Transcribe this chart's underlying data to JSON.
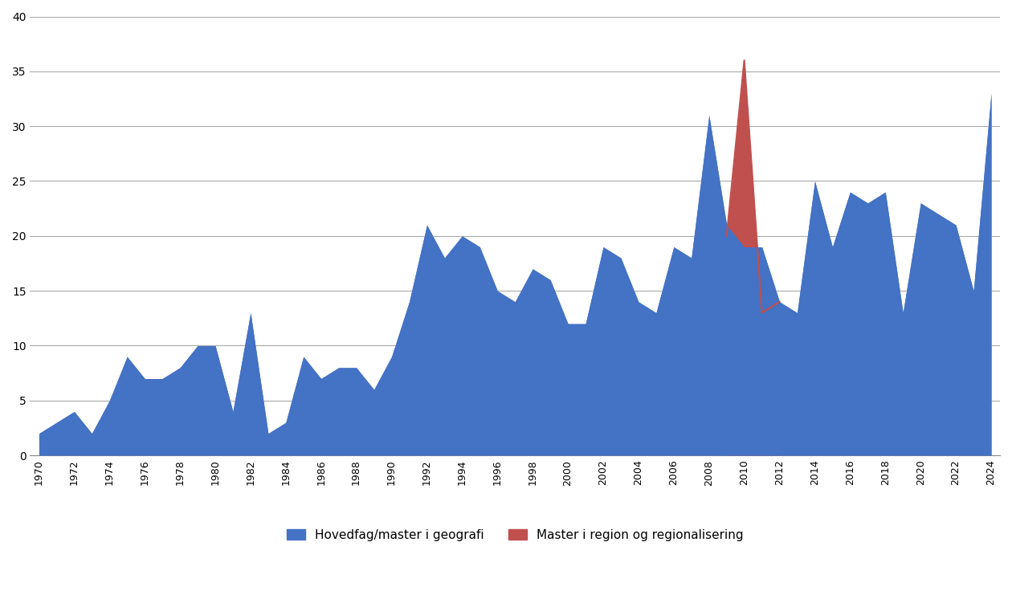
{
  "blue_series_label": "Hovedfag/master i geografi",
  "red_series_label": "Master i region og regionalisering",
  "blue_color": "#4472C4",
  "red_color": "#C0504D",
  "background_color": "#FFFFFF",
  "grid_color": "#AAAAAA",
  "years": [
    1970,
    1971,
    1972,
    1973,
    1974,
    1975,
    1976,
    1977,
    1978,
    1979,
    1980,
    1981,
    1982,
    1983,
    1984,
    1985,
    1986,
    1987,
    1988,
    1989,
    1990,
    1991,
    1992,
    1993,
    1994,
    1995,
    1996,
    1997,
    1998,
    1999,
    2000,
    2001,
    2002,
    2003,
    2004,
    2005,
    2006,
    2007,
    2008,
    2009,
    2010,
    2011,
    2012,
    2013,
    2014,
    2015,
    2016,
    2017,
    2018,
    2019,
    2020,
    2021,
    2022,
    2023,
    2024
  ],
  "blue_values": [
    2,
    3,
    4,
    2,
    5,
    9,
    7,
    7,
    8,
    10,
    10,
    4,
    13,
    2,
    3,
    9,
    7,
    8,
    8,
    6,
    9,
    14,
    21,
    18,
    20,
    19,
    15,
    14,
    17,
    16,
    12,
    12,
    19,
    18,
    14,
    13,
    19,
    18,
    31,
    21,
    19,
    19,
    14,
    13,
    25,
    19,
    24,
    23,
    24,
    13,
    23,
    22,
    21,
    15,
    33
  ],
  "red_values_years": [
    2009,
    2010,
    2011,
    2012
  ],
  "red_values": [
    20,
    36,
    13,
    14
  ],
  "ylim": [
    0,
    40
  ],
  "yticks": [
    0,
    5,
    10,
    15,
    20,
    25,
    30,
    35,
    40
  ],
  "xtick_years": [
    1970,
    1972,
    1974,
    1976,
    1978,
    1980,
    1982,
    1984,
    1986,
    1988,
    1990,
    1992,
    1994,
    1996,
    1998,
    2000,
    2002,
    2004,
    2006,
    2008,
    2010,
    2012,
    2014,
    2016,
    2018,
    2020,
    2022,
    2024
  ]
}
